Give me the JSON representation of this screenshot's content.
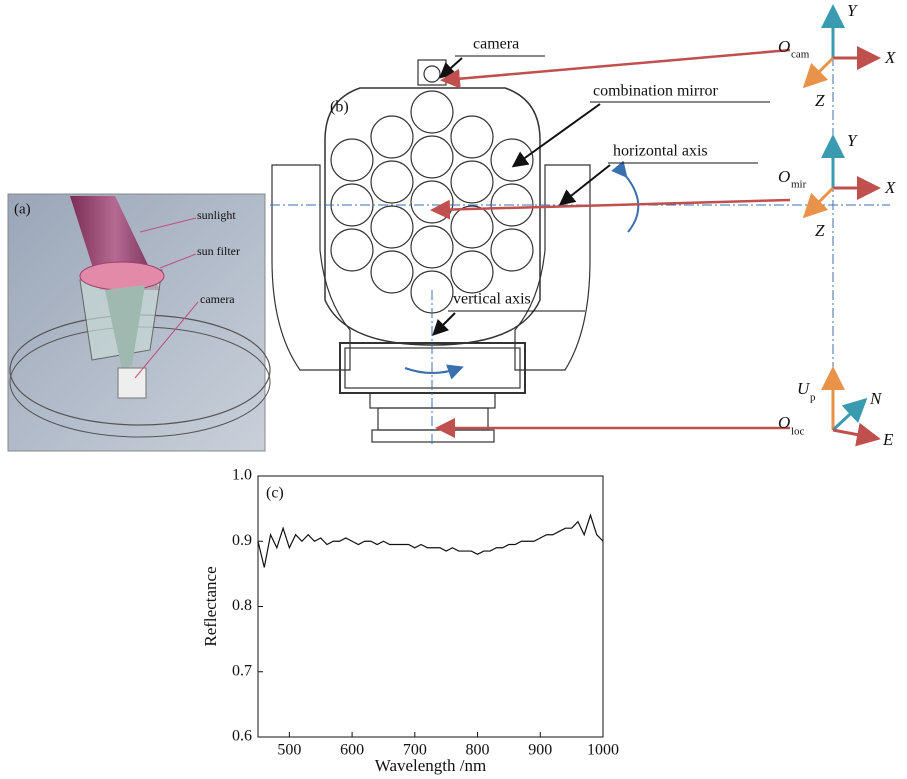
{
  "panel_a": {
    "label": "(a)",
    "labels": [
      "sunlight",
      "sun filter",
      "camera"
    ]
  },
  "panel_b": {
    "label": "(b)",
    "callouts": [
      "camera",
      "combination mirror",
      "horizontal axis",
      "vertical axis"
    ],
    "frames": [
      {
        "origin": "O",
        "sub": "cam",
        "axes": [
          "Y",
          "X",
          "Z"
        ]
      },
      {
        "origin": "O",
        "sub": "mir",
        "axes": [
          "Y",
          "X",
          "Z"
        ]
      },
      {
        "origin": "O",
        "sub": "loc",
        "axes": [
          "U",
          "N",
          "E"
        ],
        "axis_sub": "p"
      }
    ]
  },
  "chart_data": {
    "type": "line",
    "label": "(c)",
    "x_label": "Wavelength /nm",
    "y_label": "Reflectance",
    "x": [
      450,
      460,
      470,
      480,
      490,
      500,
      510,
      520,
      530,
      540,
      550,
      560,
      570,
      580,
      590,
      600,
      610,
      620,
      630,
      640,
      650,
      660,
      670,
      680,
      690,
      700,
      710,
      720,
      730,
      740,
      750,
      760,
      770,
      780,
      790,
      800,
      810,
      820,
      830,
      840,
      850,
      860,
      870,
      880,
      890,
      900,
      910,
      920,
      930,
      940,
      950,
      960,
      970,
      980,
      990,
      1000
    ],
    "series": [
      {
        "name": "Reflectance",
        "color": "#111111",
        "values": [
          0.9,
          0.86,
          0.91,
          0.89,
          0.92,
          0.89,
          0.91,
          0.9,
          0.91,
          0.9,
          0.905,
          0.895,
          0.9,
          0.9,
          0.905,
          0.9,
          0.895,
          0.9,
          0.9,
          0.895,
          0.9,
          0.895,
          0.895,
          0.895,
          0.895,
          0.89,
          0.895,
          0.89,
          0.89,
          0.89,
          0.885,
          0.89,
          0.885,
          0.885,
          0.885,
          0.88,
          0.885,
          0.885,
          0.89,
          0.89,
          0.895,
          0.895,
          0.9,
          0.9,
          0.9,
          0.905,
          0.91,
          0.91,
          0.915,
          0.92,
          0.92,
          0.93,
          0.91,
          0.94,
          0.91,
          0.9
        ]
      }
    ],
    "xlim": [
      450,
      1000
    ],
    "xticks": [
      500,
      600,
      700,
      800,
      900,
      1000
    ],
    "ylim": [
      0.6,
      1.0
    ],
    "yticks": [
      0.6,
      0.7,
      0.8,
      0.9,
      {
        "value": 1.0,
        "label": "1.0"
      }
    ]
  }
}
